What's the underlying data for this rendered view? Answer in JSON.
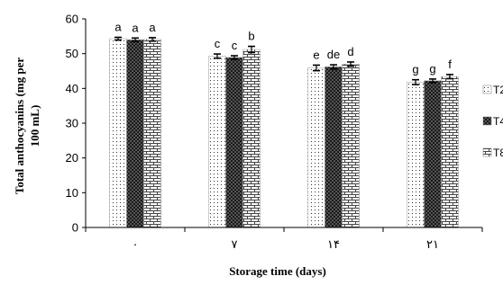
{
  "chart_data": {
    "type": "bar",
    "xlabel": "Storage time (days)",
    "ylabel_line1": "Total anthocyanins (mg per",
    "ylabel_line2": "100 mL)",
    "categories": [
      "۰",
      "۷",
      "۱۴",
      "۲۱"
    ],
    "ylim": [
      0,
      60
    ],
    "yticks": [
      0,
      10,
      20,
      30,
      40,
      50,
      60
    ],
    "legend_position": "right",
    "series": [
      {
        "name": "T2",
        "pattern": "dots",
        "values": [
          54.3,
          49.3,
          45.9,
          41.8
        ],
        "errors": [
          0.4,
          0.6,
          0.8,
          0.7
        ],
        "letters": [
          "a",
          "c",
          "e",
          "g"
        ]
      },
      {
        "name": "T4",
        "pattern": "check",
        "values": [
          54.0,
          48.9,
          46.2,
          42.2
        ],
        "errors": [
          0.5,
          0.5,
          0.6,
          0.5
        ],
        "letters": [
          "a",
          "c",
          "de",
          "g"
        ]
      },
      {
        "name": "T8",
        "pattern": "brick",
        "values": [
          54.1,
          51.2,
          47.0,
          43.4
        ],
        "errors": [
          0.5,
          0.9,
          0.6,
          0.6
        ],
        "letters": [
          "a",
          "b",
          "d",
          "f"
        ]
      }
    ]
  }
}
